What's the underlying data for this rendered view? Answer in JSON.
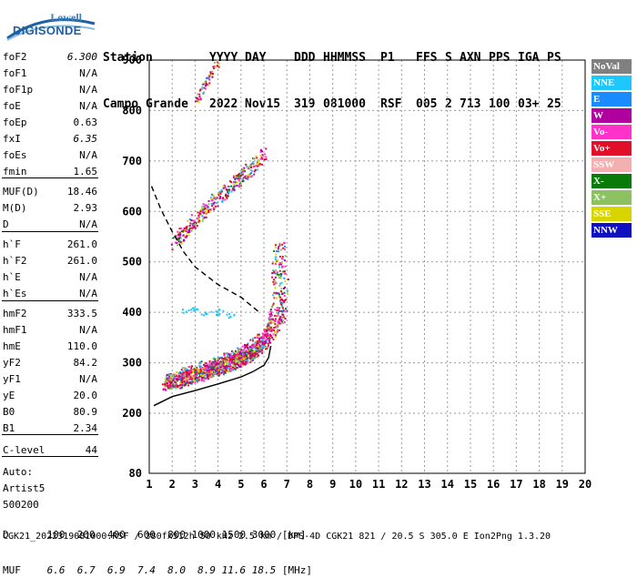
{
  "logo": {
    "line1": "Lowell",
    "line2": "DIGISONDE"
  },
  "header": {
    "labels": [
      "Station",
      "YYYY",
      "DAY",
      "DDD",
      "HHMMSS",
      "P1",
      "FFS",
      "S",
      "AXN",
      "PPS",
      "IGA",
      "PS"
    ],
    "values": [
      "Campo Grande",
      "2022",
      "Nov15",
      "319",
      "081000",
      "RSF",
      "005",
      "2",
      "713",
      "100",
      "03+",
      "25"
    ]
  },
  "scaled": [
    {
      "key": "foF2",
      "value": "6.300",
      "italic": true
    },
    {
      "key": "foF1",
      "value": "N/A"
    },
    {
      "key": "foF1p",
      "value": "N/A"
    },
    {
      "key": "foE",
      "value": "N/A"
    },
    {
      "key": "foEp",
      "value": "0.63"
    },
    {
      "key": "fxI",
      "value": "6.35",
      "italic": true
    },
    {
      "key": "foEs",
      "value": "N/A"
    },
    {
      "key": "fmin",
      "value": "1.65"
    },
    {
      "key": "MUF(D)",
      "value": "18.46"
    },
    {
      "key": "M(D)",
      "value": "2.93"
    },
    {
      "key": "D",
      "value": "N/A"
    },
    {
      "key": "h`F",
      "value": "261.0"
    },
    {
      "key": "h`F2",
      "value": "261.0"
    },
    {
      "key": "h`E",
      "value": "N/A"
    },
    {
      "key": "h`Es",
      "value": "N/A"
    },
    {
      "key": "hmF2",
      "value": "333.5"
    },
    {
      "key": "hmF1",
      "value": "N/A"
    },
    {
      "key": "hmE",
      "value": "110.0"
    },
    {
      "key": "yF2",
      "value": "84.2"
    },
    {
      "key": "yF1",
      "value": "N/A"
    },
    {
      "key": "yE",
      "value": "20.0"
    },
    {
      "key": "B0",
      "value": "80.9"
    },
    {
      "key": "B1",
      "value": "2.34"
    },
    {
      "key": "C-level",
      "value": "44"
    },
    {
      "key": "Auto:",
      "value": ""
    },
    {
      "key": "Artist5",
      "value": ""
    },
    {
      "key": "500200",
      "value": ""
    }
  ],
  "legend": [
    {
      "label": "NoVal",
      "color": "#808080"
    },
    {
      "label": "NNE",
      "color": "#1ec8ff"
    },
    {
      "label": "E",
      "color": "#1a8cff"
    },
    {
      "label": "W",
      "color": "#b000a0"
    },
    {
      "label": "Vo-",
      "color": "#ff33cc"
    },
    {
      "label": "Vo+",
      "color": "#e0102a"
    },
    {
      "label": "SSW",
      "color": "#f4b0b0"
    },
    {
      "label": "X-",
      "color": "#0a7a0a"
    },
    {
      "label": "X+",
      "color": "#8cc060"
    },
    {
      "label": "SSE",
      "color": "#d8d400"
    },
    {
      "label": "NNW",
      "color": "#1010c0"
    }
  ],
  "bottom": {
    "d_label": "D",
    "d_values": [
      "100",
      "200",
      "400",
      "600",
      "800",
      "1000",
      "1500",
      "3000"
    ],
    "d_unit": "[km]",
    "muf_label": "MUF",
    "muf_values": [
      "6.6",
      "6.7",
      "6.9",
      "7.4",
      "8.0",
      "8.9",
      "11.6",
      "18.5"
    ],
    "muf_unit": "[MHz]"
  },
  "footer": "CGK21_2022319081000.RSF / 380fx512h 50 kHz 2.5 km / DPS-4D CGK21 821 / 20.5 S 305.0 E Ion2Png 1.3.20",
  "chart_data": {
    "type": "scatter",
    "xlim": [
      1,
      20
    ],
    "ylim": [
      80,
      900
    ],
    "x_ticks": [
      1,
      2,
      3,
      4,
      5,
      6,
      7,
      8,
      9,
      10,
      11,
      12,
      13,
      14,
      15,
      16,
      17,
      18,
      19,
      20
    ],
    "y_ticks": [
      80,
      200,
      300,
      400,
      500,
      600,
      700,
      800,
      900
    ],
    "grid": true,
    "trace_ordinary_f2": [
      [
        1.6,
        262
      ],
      [
        2.0,
        266
      ],
      [
        2.5,
        272
      ],
      [
        3.0,
        279
      ],
      [
        3.5,
        286
      ],
      [
        4.0,
        293
      ],
      [
        4.5,
        300
      ],
      [
        5.0,
        310
      ],
      [
        5.5,
        322
      ],
      [
        5.8,
        335
      ],
      [
        6.0,
        350
      ],
      [
        6.2,
        370
      ],
      [
        6.3,
        400
      ],
      [
        6.35,
        450
      ],
      [
        6.4,
        520
      ]
    ],
    "trace_x_f2": [
      [
        2.3,
        270
      ],
      [
        3,
        280
      ],
      [
        4,
        295
      ],
      [
        5,
        315
      ],
      [
        6,
        345
      ],
      [
        6.6,
        380
      ],
      [
        6.9,
        420
      ],
      [
        7.0,
        460
      ]
    ],
    "trace_second_hop": [
      [
        2,
        540
      ],
      [
        2.5,
        560
      ],
      [
        3,
        585
      ],
      [
        3.5,
        610
      ],
      [
        4,
        630
      ],
      [
        4.5,
        650
      ],
      [
        5,
        670
      ],
      [
        5.5,
        690
      ],
      [
        6,
        720
      ]
    ],
    "trace_third_hop": [
      [
        3,
        820
      ],
      [
        3.5,
        860
      ],
      [
        4,
        900
      ]
    ],
    "profile_line": [
      [
        1.2,
        215
      ],
      [
        2,
        233
      ],
      [
        3,
        245
      ],
      [
        4,
        258
      ],
      [
        5,
        272
      ],
      [
        5.5,
        282
      ],
      [
        6,
        295
      ],
      [
        6.2,
        310
      ],
      [
        6.3,
        333.5
      ]
    ],
    "dashed_line": [
      [
        1.1,
        650
      ],
      [
        1.5,
        605
      ],
      [
        2,
        560
      ],
      [
        2.5,
        520
      ],
      [
        3,
        490
      ],
      [
        4,
        455
      ],
      [
        5,
        430
      ],
      [
        5.8,
        400
      ]
    ],
    "scatter_cluster_a": [
      [
        2.6,
        402
      ],
      [
        3.0,
        405
      ],
      [
        3.4,
        398
      ],
      [
        3.8,
        400
      ],
      [
        4.2,
        402
      ],
      [
        4.6,
        396
      ]
    ]
  }
}
